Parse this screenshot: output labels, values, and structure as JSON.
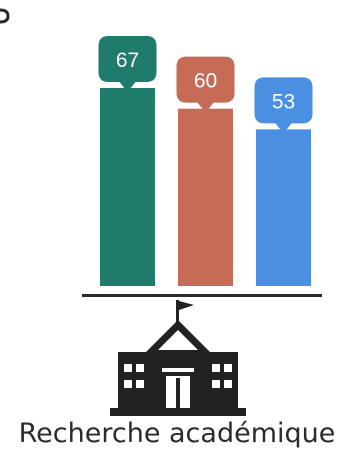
{
  "chart_data": {
    "type": "bar",
    "categories": [
      "Recherche académique"
    ],
    "series": [
      {
        "values": [
          67
        ],
        "color": "#1f7b6b"
      },
      {
        "values": [
          60
        ],
        "color": "#c56b56"
      },
      {
        "values": [
          53
        ],
        "color": "#4a8fe2"
      }
    ],
    "data_labels": [
      "67",
      "60",
      "53"
    ],
    "xlabel": "",
    "ylabel": "",
    "ylim": [
      0,
      70
    ],
    "grid": false,
    "legend": "none"
  },
  "category_icon": "school-building-icon"
}
